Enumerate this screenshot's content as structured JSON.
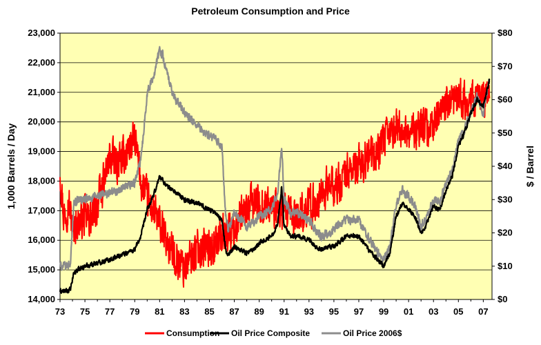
{
  "chart_data": {
    "type": "line",
    "title": "Petroleum Consumption and Price",
    "ylabel_left": "1,000 Barrels / Day",
    "ylabel_right": "$ / Barrel",
    "xlabel": "",
    "x_range": [
      1973,
      2007.7
    ],
    "ylim_left": [
      14000,
      23000
    ],
    "ylim_right": [
      0,
      80
    ],
    "grid": true,
    "legend_position": "bottom",
    "x_ticks": [
      "73",
      "75",
      "77",
      "79",
      "81",
      "83",
      "85",
      "87",
      "89",
      "91",
      "93",
      "95",
      "97",
      "99",
      "01",
      "03",
      "05",
      "07"
    ],
    "x_tick_values": [
      1973,
      1975,
      1977,
      1979,
      1981,
      1983,
      1985,
      1987,
      1989,
      1991,
      1993,
      1995,
      1997,
      1999,
      2001,
      2003,
      2005,
      2007
    ],
    "y_ticks_left": [
      "14,000",
      "15,000",
      "16,000",
      "17,000",
      "18,000",
      "19,000",
      "20,000",
      "21,000",
      "22,000",
      "23,000"
    ],
    "y_tick_values_left": [
      14000,
      15000,
      16000,
      17000,
      18000,
      19000,
      20000,
      21000,
      22000,
      23000
    ],
    "y_ticks_right": [
      "$0",
      "$10",
      "$20",
      "$30",
      "$40",
      "$50",
      "$60",
      "$70",
      "$80"
    ],
    "y_tick_values_right": [
      0,
      10,
      20,
      30,
      40,
      50,
      60,
      70,
      80
    ],
    "colors": {
      "plot_bg": "#FFFFB3",
      "consumption": "#FF0000",
      "composite": "#000000",
      "real": "#8C8C8C",
      "grid": "#000000"
    },
    "series": [
      {
        "name": "Consumption",
        "axis": "left",
        "color": "#FF0000",
        "x": [
          1973.0,
          1973.3,
          1973.7,
          1974.0,
          1974.5,
          1975.0,
          1975.5,
          1976.0,
          1976.5,
          1977.0,
          1977.5,
          1978.0,
          1978.5,
          1979.0,
          1979.5,
          1980.0,
          1980.5,
          1981.0,
          1981.5,
          1982.0,
          1982.5,
          1983.0,
          1983.5,
          1984.0,
          1984.5,
          1985.0,
          1985.5,
          1986.0,
          1986.5,
          1987.0,
          1987.5,
          1988.0,
          1988.5,
          1989.0,
          1989.5,
          1990.0,
          1990.5,
          1991.0,
          1991.5,
          1992.0,
          1992.5,
          1993.0,
          1993.5,
          1994.0,
          1994.5,
          1995.0,
          1995.5,
          1996.0,
          1996.5,
          1997.0,
          1997.5,
          1998.0,
          1998.5,
          1999.0,
          1999.5,
          2000.0,
          2000.5,
          2001.0,
          2001.5,
          2002.0,
          2002.5,
          2003.0,
          2003.5,
          2004.0,
          2004.5,
          2005.0,
          2005.5,
          2006.0,
          2006.5,
          2007.0,
          2007.5
        ],
        "values": [
          18400,
          16800,
          17300,
          16400,
          16600,
          16800,
          16700,
          17200,
          17900,
          18800,
          18600,
          18700,
          19100,
          19400,
          18000,
          17400,
          17000,
          16500,
          16000,
          15600,
          15300,
          15100,
          15400,
          15700,
          15800,
          15700,
          15900,
          16200,
          16300,
          16400,
          16700,
          17000,
          17300,
          17200,
          17200,
          17100,
          17000,
          16900,
          16800,
          16800,
          17000,
          17100,
          17200,
          17600,
          17800,
          17800,
          17900,
          18300,
          18400,
          18500,
          18700,
          18800,
          19000,
          19300,
          19600,
          19800,
          19700,
          19700,
          19700,
          19800,
          19800,
          20000,
          20200,
          20500,
          20600,
          20700,
          20800,
          20700,
          20700,
          20800,
          20900
        ],
        "noise": 900
      },
      {
        "name": "Oil Price Composite",
        "axis": "right",
        "color": "#000000",
        "x": [
          1973.0,
          1973.5,
          1973.85,
          1974.1,
          1974.5,
          1975.0,
          1976.0,
          1977.0,
          1978.0,
          1979.0,
          1979.5,
          1980.0,
          1980.5,
          1981.0,
          1981.2,
          1981.6,
          1982.0,
          1983.0,
          1984.0,
          1985.0,
          1985.5,
          1986.0,
          1986.3,
          1986.5,
          1987.0,
          1988.0,
          1988.5,
          1989.0,
          1990.0,
          1990.5,
          1990.8,
          1991.0,
          1991.5,
          1992.0,
          1993.0,
          1993.5,
          1994.0,
          1995.0,
          1996.0,
          1997.0,
          1998.0,
          1998.5,
          1999.0,
          1999.5,
          2000.0,
          2000.5,
          2001.0,
          2001.5,
          2002.0,
          2002.5,
          2003.0,
          2003.5,
          2004.0,
          2004.5,
          2005.0,
          2005.5,
          2006.0,
          2006.5,
          2007.0,
          2007.5
        ],
        "values": [
          2.5,
          2.5,
          3,
          8,
          9,
          10,
          11,
          12,
          13.5,
          15,
          19,
          27,
          31,
          37,
          36,
          34,
          33,
          30,
          29,
          27,
          26,
          24,
          15,
          13,
          16,
          14,
          15,
          17,
          19,
          23,
          34,
          22,
          19,
          19,
          18,
          16,
          15,
          16,
          19,
          19,
          14,
          12,
          10,
          14,
          25,
          29,
          27,
          25,
          20,
          23,
          28,
          27,
          33,
          37,
          46,
          50,
          56,
          60,
          58,
          66
        ],
        "noise": 1.0
      },
      {
        "name": "Oil Price 2006$",
        "axis": "right",
        "color": "#8C8C8C",
        "x": [
          1973.0,
          1973.5,
          1973.85,
          1974.1,
          1974.5,
          1975.0,
          1976.0,
          1977.0,
          1978.0,
          1979.0,
          1979.5,
          1980.0,
          1980.5,
          1981.0,
          1981.2,
          1981.6,
          1982.0,
          1983.0,
          1984.0,
          1985.0,
          1985.5,
          1986.0,
          1986.3,
          1986.5,
          1987.0,
          1988.0,
          1988.5,
          1989.0,
          1990.0,
          1990.5,
          1990.8,
          1991.0,
          1991.5,
          1992.0,
          1993.0,
          1993.5,
          1994.0,
          1995.0,
          1996.0,
          1997.0,
          1998.0,
          1998.5,
          1999.0,
          1999.5,
          2000.0,
          2000.5,
          2001.0,
          2001.5,
          2002.0,
          2002.5,
          2003.0,
          2003.5,
          2004.0,
          2004.5,
          2005.0,
          2005.5,
          2006.0,
          2006.5,
          2007.0,
          2007.5
        ],
        "values": [
          10,
          10,
          11,
          29,
          30,
          30,
          31,
          32,
          33,
          35,
          42,
          62,
          67,
          75,
          74,
          68,
          62,
          56,
          52,
          49,
          48,
          46,
          25,
          21,
          26,
          22,
          23,
          25,
          27,
          32,
          46,
          30,
          26,
          26,
          24,
          21,
          19,
          21,
          24,
          24,
          17,
          14,
          12,
          16,
          29,
          33,
          31,
          28,
          22,
          25,
          30,
          29,
          35,
          39,
          48,
          51,
          56,
          61,
          56,
          66
        ],
        "noise": 1.8
      }
    ],
    "legend": [
      "Consumption",
      "Oil Price Composite",
      "Oil Price 2006$"
    ]
  }
}
